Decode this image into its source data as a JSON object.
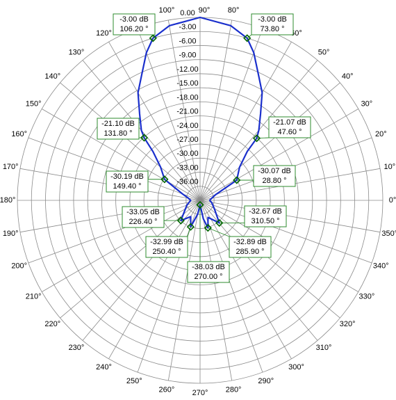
{
  "chart_data": {
    "type": "polar",
    "rlim": [
      -39,
      0
    ],
    "rticks": [
      {
        "value": 0,
        "label": "0.00"
      },
      {
        "value": -3,
        "label": "-3.00"
      },
      {
        "value": -6,
        "label": "-6.00"
      },
      {
        "value": -9,
        "label": "-9.00"
      },
      {
        "value": -12,
        "label": "-12.00"
      },
      {
        "value": -15,
        "label": "-15.00"
      },
      {
        "value": -18,
        "label": "-18.00"
      },
      {
        "value": -21,
        "label": "-21.00"
      },
      {
        "value": -24,
        "label": "-24.00"
      },
      {
        "value": -27,
        "label": "-27.00"
      },
      {
        "value": -30,
        "label": "-30.00"
      },
      {
        "value": -33,
        "label": "-33.00"
      },
      {
        "value": -36,
        "label": "-36.00"
      }
    ],
    "thetaticks": [
      {
        "value": 0,
        "label": "0°"
      },
      {
        "value": 10,
        "label": "10°"
      },
      {
        "value": 20,
        "label": "20°"
      },
      {
        "value": 30,
        "label": "30°"
      },
      {
        "value": 40,
        "label": "40°"
      },
      {
        "value": 50,
        "label": "50°"
      },
      {
        "value": 60,
        "label": "60°"
      },
      {
        "value": 70,
        "label": "70°"
      },
      {
        "value": 80,
        "label": "80°"
      },
      {
        "value": 90,
        "label": "90°"
      },
      {
        "value": 100,
        "label": "100°"
      },
      {
        "value": 110,
        "label": "110°"
      },
      {
        "value": 120,
        "label": "120°"
      },
      {
        "value": 130,
        "label": "130°"
      },
      {
        "value": 140,
        "label": "140°"
      },
      {
        "value": 150,
        "label": "150°"
      },
      {
        "value": 160,
        "label": "160°"
      },
      {
        "value": 170,
        "label": "170°"
      },
      {
        "value": 180,
        "label": "180°"
      },
      {
        "value": 190,
        "label": "190°"
      },
      {
        "value": 200,
        "label": "200°"
      },
      {
        "value": 210,
        "label": "210°"
      },
      {
        "value": 220,
        "label": "220°"
      },
      {
        "value": 230,
        "label": "230°"
      },
      {
        "value": 240,
        "label": "240°"
      },
      {
        "value": 250,
        "label": "250°"
      },
      {
        "value": 260,
        "label": "260°"
      },
      {
        "value": 270,
        "label": "270°"
      },
      {
        "value": 280,
        "label": "280°"
      },
      {
        "value": 290,
        "label": "290°"
      },
      {
        "value": 300,
        "label": "300°"
      },
      {
        "value": 310,
        "label": "310°"
      },
      {
        "value": 320,
        "label": "320°"
      },
      {
        "value": 330,
        "label": "330°"
      },
      {
        "value": 340,
        "label": "340°"
      },
      {
        "value": 350,
        "label": "350°"
      }
    ],
    "grid": true,
    "series": [
      {
        "color": "#1a2fcc",
        "theta": [
          0,
          10,
          20,
          28.8,
          40,
          46,
          47.6,
          50,
          55,
          60,
          65,
          70,
          73.8,
          80,
          90,
          100,
          106.2,
          110,
          115,
          120,
          125,
          130,
          131.8,
          134,
          140,
          149.4,
          160,
          170,
          180,
          200,
          226.4,
          240,
          250.4,
          260,
          270,
          280,
          285.9,
          295,
          310.5,
          330,
          350,
          360
        ],
        "values": [
          -37,
          -36.5,
          -35.5,
          -30.07,
          -28,
          -24.5,
          -21.07,
          -19.5,
          -16.5,
          -12.5,
          -9.5,
          -5.5,
          -3,
          -1.2,
          0,
          -1.2,
          -3,
          -5.5,
          -9.5,
          -12.5,
          -16.5,
          -19.5,
          -21.1,
          -24.5,
          -28,
          -30.19,
          -35,
          -36.5,
          -37,
          -36,
          -33.05,
          -35,
          -32.99,
          -36,
          -38.03,
          -35,
          -32.89,
          -35,
          -32.67,
          -35.5,
          -36.5,
          -37
        ]
      }
    ],
    "markers": [
      {
        "theta": 106.2,
        "value": -3.0,
        "value_label": "-3.00 dB",
        "theta_label": "106.20 °"
      },
      {
        "theta": 73.8,
        "value": -3.0,
        "value_label": "-3.00 dB",
        "theta_label": "73.80 °"
      },
      {
        "theta": 131.8,
        "value": -21.1,
        "value_label": "-21.10 dB",
        "theta_label": "131.80 °"
      },
      {
        "theta": 47.6,
        "value": -21.07,
        "value_label": "-21.07 dB",
        "theta_label": "47.60 °"
      },
      {
        "theta": 149.4,
        "value": -30.19,
        "value_label": "-30.19 dB",
        "theta_label": "149.40 °"
      },
      {
        "theta": 28.8,
        "value": -30.07,
        "value_label": "-30.07 dB",
        "theta_label": "28.80 °"
      },
      {
        "theta": 226.4,
        "value": -33.05,
        "value_label": "-33.05 dB",
        "theta_label": "226.40 °"
      },
      {
        "theta": 310.5,
        "value": -32.67,
        "value_label": "-32.67 dB",
        "theta_label": "310.50 °"
      },
      {
        "theta": 250.4,
        "value": -32.99,
        "value_label": "-32.99 dB",
        "theta_label": "250.40 °"
      },
      {
        "theta": 285.9,
        "value": -32.89,
        "value_label": "-32.89 dB",
        "theta_label": "285.90 °"
      },
      {
        "theta": 270.0,
        "value": -38.03,
        "value_label": "-38.03 dB",
        "theta_label": "270.00 °"
      }
    ]
  }
}
